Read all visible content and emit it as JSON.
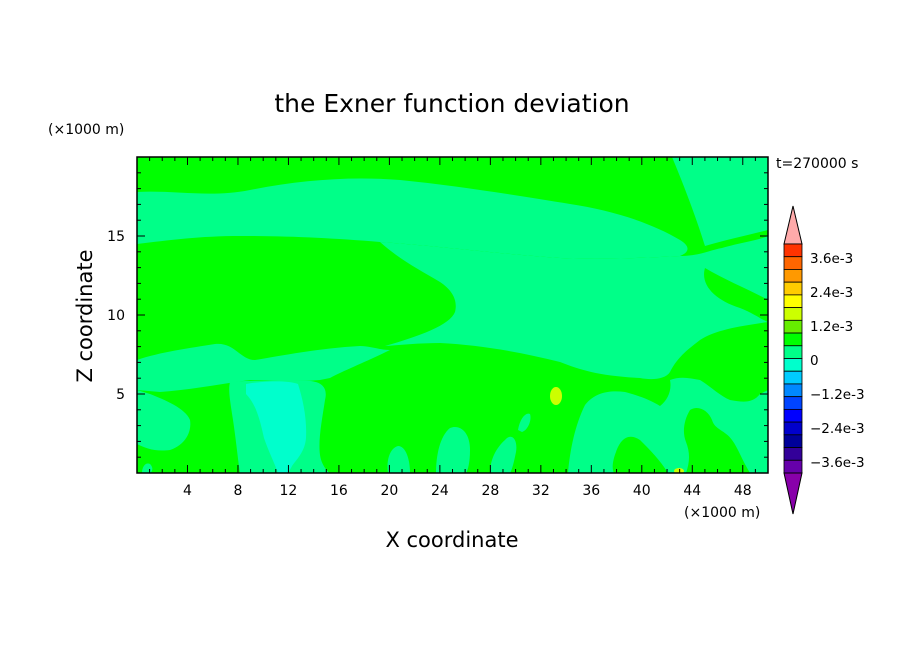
{
  "chart_data": {
    "type": "heatmap",
    "title": "the Exner function deviation",
    "time_label": "t=270000 s",
    "xlabel": "X coordinate",
    "ylabel": "Z coordinate",
    "x_unit": "(×1000 m)",
    "y_unit": "(×1000 m)",
    "xlim": [
      0,
      50
    ],
    "ylim": [
      0,
      20
    ],
    "x_ticks": [
      4,
      8,
      12,
      16,
      20,
      24,
      28,
      32,
      36,
      40,
      44,
      48
    ],
    "y_ticks": [
      5,
      10,
      15
    ],
    "colorbar": {
      "labels": [
        "3.6e-3",
        "2.4e-3",
        "1.2e-3",
        "0",
        "−1.2e-3",
        "−2.4e-3",
        "−3.6e-3"
      ],
      "label_values": [
        0.0036,
        0.0024,
        0.0012,
        0,
        -0.0012,
        -0.0024,
        -0.0036
      ],
      "colors_top_to_bottom": [
        "#ff3300",
        "#ff6600",
        "#ff9900",
        "#ffcc00",
        "#ffff00",
        "#ccff00",
        "#66ee00",
        "#00ff00",
        "#00ff88",
        "#00ffcc",
        "#00ccff",
        "#0088ff",
        "#0044ff",
        "#0000ff",
        "#0000cc",
        "#000099",
        "#330099",
        "#6600aa"
      ],
      "over_color": "#ffaaaa",
      "under_color": "#8800aa"
    },
    "fill_colors": {
      "green": "#00ff00",
      "mint": "#00ff88",
      "cyan": "#00ffcc",
      "lime": "#ccff00"
    }
  }
}
